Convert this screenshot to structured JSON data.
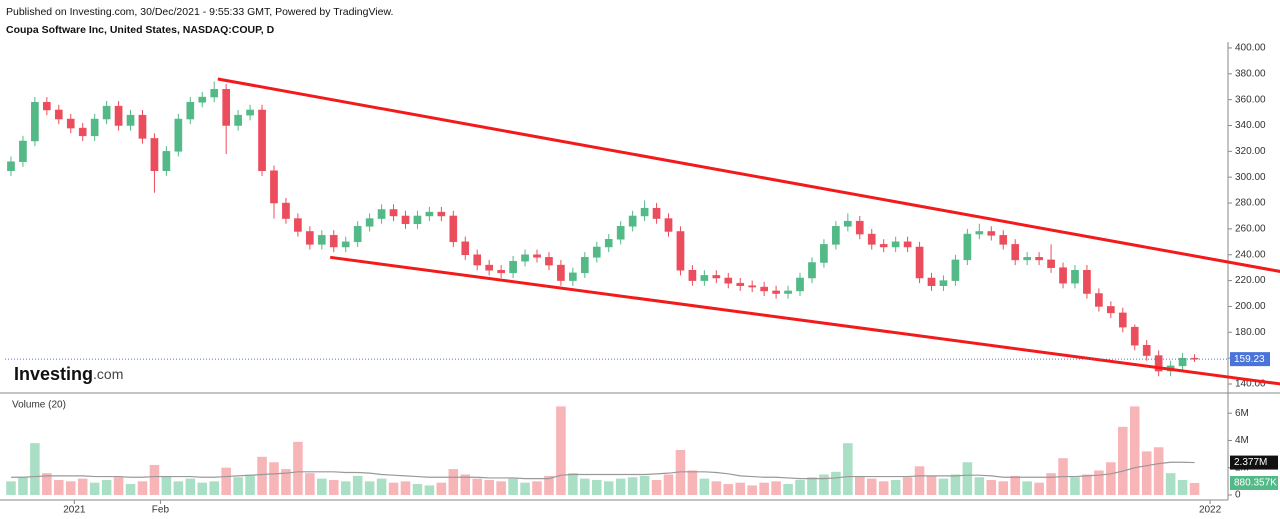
{
  "header": {
    "published": "Published on Investing.com, 30/Dec/2021 - 9:55:33 GMT, Powered by TradingView.",
    "logo": {
      "name": "Investing",
      "suffix": ".com"
    }
  },
  "chart_data": [
    {
      "type": "candlestick",
      "title": "Coupa Software Inc, United States, NASDAQ:COUP, D",
      "up_color": "#53b987",
      "down_color": "#eb4d5c",
      "xlim": [
        -0.5,
        101.8
      ],
      "xticks": [
        {
          "value": 5.3,
          "label": "2021"
        },
        {
          "value": 12.5,
          "label": "Feb"
        },
        {
          "value": 100.3,
          "label": "2022"
        }
      ],
      "ylim": [
        133.8,
        404.6
      ],
      "yticks": [
        {
          "value": 140,
          "label": "140.00"
        },
        {
          "value": 160,
          "label": "160.00"
        },
        {
          "value": 180,
          "label": "180.00"
        },
        {
          "value": 200,
          "label": "200.00"
        },
        {
          "value": 220,
          "label": "220.00"
        },
        {
          "value": 240,
          "label": "240.00"
        },
        {
          "value": 260,
          "label": "260.00"
        },
        {
          "value": 280,
          "label": "280.00"
        },
        {
          "value": 300,
          "label": "300.00"
        },
        {
          "value": 320,
          "label": "320.00"
        },
        {
          "value": 340,
          "label": "340.00"
        },
        {
          "value": 360,
          "label": "360.00"
        },
        {
          "value": 380,
          "label": "380.00"
        },
        {
          "value": 400,
          "label": "400.00"
        }
      ],
      "open": [
        305,
        312,
        328,
        358,
        352,
        345,
        338,
        332,
        345,
        355,
        340,
        348,
        330,
        305,
        320,
        345,
        358,
        362,
        368,
        340,
        348,
        352,
        305,
        280,
        268,
        258,
        248,
        255,
        246,
        250,
        262,
        268,
        275,
        270,
        264,
        270,
        273,
        270,
        250,
        240,
        232,
        228,
        226,
        235,
        240,
        238,
        232,
        220,
        226,
        238,
        246,
        252,
        262,
        270,
        276,
        268,
        258,
        228,
        220,
        224,
        222,
        218,
        216,
        215,
        212,
        210,
        212,
        222,
        234,
        248,
        262,
        266,
        256,
        248,
        246,
        250,
        246,
        222,
        216,
        220,
        236,
        256,
        258,
        255,
        248,
        236,
        238,
        236,
        230,
        218,
        228,
        210,
        200,
        195,
        184,
        170,
        162,
        150,
        154,
        160
      ],
      "high": [
        316,
        332,
        362,
        362,
        356,
        349,
        342,
        349,
        359,
        359,
        352,
        352,
        334,
        324,
        349,
        362,
        366,
        374,
        372,
        352,
        356,
        356,
        309,
        284,
        272,
        262,
        259,
        259,
        254,
        266,
        272,
        279,
        279,
        274,
        274,
        277,
        277,
        274,
        254,
        244,
        236,
        232,
        239,
        244,
        244,
        242,
        236,
        230,
        242,
        250,
        256,
        266,
        274,
        282,
        280,
        272,
        262,
        232,
        228,
        228,
        226,
        222,
        220,
        219,
        216,
        216,
        226,
        238,
        252,
        266,
        272,
        270,
        260,
        252,
        254,
        254,
        250,
        226,
        224,
        240,
        260,
        264,
        262,
        259,
        252,
        242,
        242,
        248,
        234,
        232,
        232,
        214,
        204,
        199,
        186,
        174,
        166,
        158,
        164,
        163
      ],
      "low": [
        301,
        308,
        324,
        348,
        341,
        334,
        328,
        328,
        341,
        336,
        336,
        326,
        288,
        301,
        316,
        341,
        354,
        358,
        318,
        336,
        344,
        301,
        268,
        264,
        254,
        244,
        244,
        242,
        242,
        246,
        258,
        264,
        266,
        260,
        260,
        266,
        266,
        246,
        236,
        228,
        224,
        222,
        222,
        231,
        234,
        228,
        216,
        216,
        222,
        234,
        242,
        248,
        258,
        266,
        264,
        254,
        224,
        216,
        216,
        218,
        214,
        212,
        211,
        208,
        206,
        206,
        208,
        218,
        230,
        244,
        258,
        252,
        244,
        242,
        242,
        242,
        218,
        212,
        212,
        216,
        232,
        252,
        251,
        244,
        232,
        232,
        232,
        226,
        214,
        214,
        206,
        196,
        191,
        180,
        166,
        158,
        146,
        146,
        150,
        157
      ],
      "close": [
        312,
        328,
        358,
        352,
        345,
        338,
        332,
        345,
        355,
        340,
        348,
        330,
        305,
        320,
        345,
        358,
        362,
        368,
        340,
        348,
        352,
        305,
        280,
        268,
        258,
        248,
        255,
        246,
        250,
        262,
        268,
        275,
        270,
        264,
        270,
        273,
        270,
        250,
        240,
        232,
        228,
        226,
        235,
        240,
        238,
        232,
        220,
        226,
        238,
        246,
        252,
        262,
        270,
        276,
        268,
        258,
        228,
        220,
        224,
        222,
        218,
        216,
        215,
        212,
        210,
        212,
        222,
        234,
        248,
        262,
        266,
        256,
        248,
        246,
        250,
        246,
        222,
        216,
        220,
        236,
        256,
        258,
        255,
        248,
        236,
        238,
        236,
        230,
        218,
        228,
        210,
        200,
        195,
        184,
        170,
        162,
        150,
        154,
        160,
        159.23
      ],
      "last": {
        "value": 159.23,
        "label": "159.23"
      },
      "last_color": "#4a74d9",
      "trendlines": [
        {
          "x": [
            17.3,
            106.2
          ],
          "y": [
            376,
            227
          ]
        },
        {
          "x": [
            26.7,
            106.2
          ],
          "y": [
            238,
            140
          ]
        }
      ],
      "trendline_color": "#f21a1a"
    },
    {
      "type": "bar",
      "title": "Volume (20)",
      "up_color": "#a9dfc4",
      "down_color": "#f7b5b8",
      "ma_color": "#999999",
      "ylim": [
        -0.37,
        7.19
      ],
      "yticks": [
        0,
        {
          "value": 2,
          "label": "2M"
        },
        {
          "value": 4,
          "label": "4M"
        },
        {
          "value": 6,
          "label": "6M"
        }
      ],
      "values": [
        1.0,
        1.3,
        3.8,
        1.6,
        1.1,
        1.0,
        1.2,
        0.9,
        1.1,
        1.3,
        0.8,
        1.0,
        2.2,
        1.4,
        1.0,
        1.2,
        0.9,
        1.0,
        2.0,
        1.3,
        1.5,
        2.8,
        2.4,
        1.9,
        3.9,
        1.6,
        1.2,
        1.1,
        1.0,
        1.4,
        1.0,
        1.2,
        0.9,
        1.0,
        0.8,
        0.7,
        0.9,
        1.9,
        1.5,
        1.2,
        1.1,
        1.0,
        1.2,
        0.9,
        1.0,
        1.4,
        6.5,
        1.6,
        1.2,
        1.1,
        1.0,
        1.2,
        1.3,
        1.4,
        1.1,
        1.5,
        3.3,
        1.8,
        1.2,
        1.0,
        0.8,
        0.9,
        0.7,
        0.9,
        1.0,
        0.8,
        1.1,
        1.3,
        1.5,
        1.7,
        3.8,
        1.4,
        1.2,
        1.0,
        1.1,
        1.3,
        2.1,
        1.4,
        1.2,
        1.5,
        2.4,
        1.3,
        1.1,
        1.0,
        1.4,
        1.0,
        0.9,
        1.6,
        2.7,
        1.3,
        1.5,
        1.8,
        2.4,
        5.0,
        6.5,
        3.2,
        3.5,
        1.6,
        1.1,
        0.880357
      ],
      "moving_average": [
        1.3,
        1.3,
        1.35,
        1.4,
        1.4,
        1.4,
        1.4,
        1.35,
        1.35,
        1.35,
        1.3,
        1.3,
        1.35,
        1.35,
        1.35,
        1.35,
        1.3,
        1.3,
        1.35,
        1.4,
        1.45,
        1.5,
        1.55,
        1.6,
        1.7,
        1.7,
        1.7,
        1.7,
        1.65,
        1.65,
        1.6,
        1.5,
        1.45,
        1.4,
        1.35,
        1.3,
        1.3,
        1.3,
        1.3,
        1.3,
        1.25,
        1.25,
        1.25,
        1.2,
        1.2,
        1.2,
        1.45,
        1.5,
        1.5,
        1.5,
        1.5,
        1.5,
        1.5,
        1.5,
        1.55,
        1.6,
        1.7,
        1.7,
        1.7,
        1.65,
        1.55,
        1.4,
        1.35,
        1.3,
        1.3,
        1.25,
        1.2,
        1.2,
        1.2,
        1.25,
        1.35,
        1.35,
        1.35,
        1.35,
        1.35,
        1.35,
        1.4,
        1.4,
        1.4,
        1.4,
        1.45,
        1.45,
        1.4,
        1.3,
        1.3,
        1.3,
        1.3,
        1.3,
        1.35,
        1.35,
        1.4,
        1.45,
        1.55,
        1.75,
        2.0,
        2.15,
        2.3,
        2.4,
        2.4,
        2.377
      ],
      "last_labels": [
        {
          "value": 2.377,
          "label": "2.377M",
          "color": "#111111"
        },
        {
          "value": 0.880357,
          "label": "880.357K",
          "color": "#53b987"
        }
      ]
    }
  ]
}
